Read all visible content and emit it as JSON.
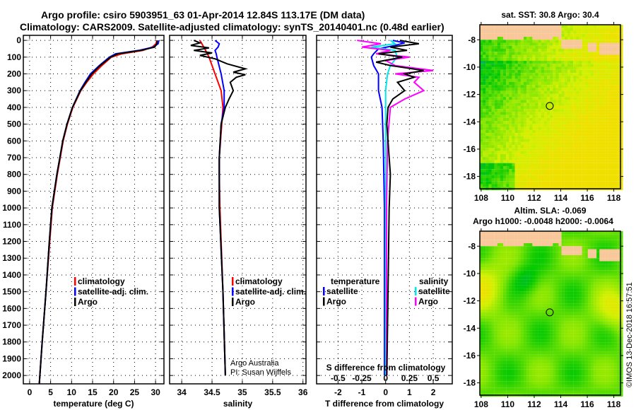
{
  "title": {
    "line1": "Argo profile: csiro 5903951_63 01-Apr-2014 12.84S 113.17E (DM data)",
    "line2": "Climatology: CARS2009. Satellite-adjusted climatology: synTS_20140401.nc (0.48d earlier)"
  },
  "watermark": "©IMOS 13-Dec-2018 16:57:51",
  "credit": {
    "line1": "Argo Australia",
    "line2": "PI: Susan Wijffels"
  },
  "colors": {
    "argo": "#000000",
    "climatology": "#ff0000",
    "satellite": "#0000ff",
    "sal_satellite": "#00e8e8",
    "sal_argo": "#ff00ff",
    "land": "#f8c89a"
  },
  "chart_data": [
    {
      "type": "line",
      "id": "temperature",
      "xlabel": "temperature (deg C)",
      "ylabel": "",
      "xlim": [
        -1.5,
        32
      ],
      "ylim": [
        2050,
        -30
      ],
      "xticks": [
        0,
        5,
        10,
        15,
        20,
        25,
        30
      ],
      "yticks": [
        0,
        100,
        200,
        300,
        400,
        500,
        600,
        700,
        800,
        900,
        1000,
        1100,
        1200,
        1300,
        1400,
        1500,
        1600,
        1700,
        1800,
        1900,
        2000
      ],
      "grid": true,
      "legend": [
        "climatology",
        "satellite-adj. clim.",
        "Argo"
      ],
      "series": [
        {
          "name": "climatology",
          "color": "#ff0000",
          "depth": [
            0,
            20,
            40,
            60,
            80,
            100,
            150,
            200,
            250,
            300,
            400,
            500,
            600,
            700,
            800,
            1000,
            1200,
            1500,
            1800,
            2050
          ],
          "values": [
            30.3,
            30.1,
            29.2,
            27.0,
            22.0,
            19.5,
            17.2,
            15.2,
            13.6,
            12.2,
            10.3,
            9.0,
            8.0,
            7.3,
            6.6,
            5.4,
            4.8,
            3.9,
            3.0,
            2.3
          ]
        },
        {
          "name": "satellite-adj. clim.",
          "color": "#0000ff",
          "depth": [
            0,
            20,
            40,
            60,
            80,
            100,
            150,
            200,
            250,
            300,
            400,
            500,
            600,
            700,
            800,
            1000,
            1200,
            1500,
            1800,
            2050
          ],
          "values": [
            30.8,
            30.6,
            29.5,
            26.0,
            20.5,
            19.0,
            16.6,
            14.5,
            13.2,
            12.0,
            10.2,
            8.9,
            7.9,
            7.2,
            6.5,
            5.3,
            4.7,
            3.9,
            3.0,
            2.3
          ]
        },
        {
          "name": "Argo",
          "color": "#000000",
          "depth": [
            0,
            20,
            40,
            60,
            80,
            100,
            150,
            200,
            250,
            300,
            400,
            500,
            600,
            700,
            800,
            1000,
            1200,
            1500,
            1800,
            2050
          ],
          "values": [
            30.4,
            30.3,
            29.8,
            26.5,
            21.0,
            19.3,
            16.8,
            14.8,
            13.4,
            12.1,
            10.2,
            8.9,
            7.9,
            7.2,
            6.5,
            5.3,
            4.7,
            3.9,
            3.0,
            2.3
          ]
        }
      ]
    },
    {
      "type": "line",
      "id": "salinity",
      "xlabel": "salinity",
      "xlim": [
        33.8,
        36.05
      ],
      "ylim": [
        2050,
        -30
      ],
      "xticks": [
        34,
        34.5,
        35,
        35.5,
        36
      ],
      "grid": true,
      "legend": [
        "climatology",
        "satellite-adj. clim.",
        "Argo"
      ],
      "series": [
        {
          "name": "climatology",
          "color": "#ff0000",
          "depth": [
            0,
            50,
            100,
            200,
            300,
            400,
            600,
            700,
            800,
            1000,
            1500,
            2000
          ],
          "values": [
            34.3,
            34.38,
            34.45,
            34.55,
            34.65,
            34.68,
            34.64,
            34.62,
            34.62,
            34.63,
            34.68,
            34.72
          ]
        },
        {
          "name": "satellite-adj. clim.",
          "color": "#0000ff",
          "depth": [
            0,
            20,
            40,
            60,
            80,
            100,
            200,
            300,
            400,
            500,
            700,
            1000,
            1500,
            2000
          ],
          "values": [
            34.55,
            34.62,
            34.6,
            34.55,
            34.57,
            34.58,
            34.65,
            34.7,
            34.7,
            34.65,
            34.62,
            34.62,
            34.68,
            34.72
          ]
        },
        {
          "name": "Argo",
          "color": "#000000",
          "depth": [
            0,
            15,
            30,
            45,
            60,
            75,
            90,
            110,
            140,
            170,
            190,
            205,
            220,
            250,
            300,
            350,
            400,
            500,
            700,
            1000,
            1500,
            2000
          ],
          "values": [
            34.2,
            34.3,
            34.15,
            34.45,
            34.2,
            34.5,
            34.3,
            34.55,
            34.75,
            35.05,
            34.85,
            35.05,
            34.9,
            34.8,
            34.85,
            34.78,
            34.72,
            34.65,
            34.62,
            34.62,
            34.68,
            34.72
          ]
        }
      ]
    },
    {
      "type": "line",
      "id": "difference",
      "xlabel": "T difference from climatology",
      "xlabel2": "S difference from climatology",
      "xlim": [
        -2.9,
        2.8
      ],
      "ylim": [
        2050,
        -30
      ],
      "xticks": [
        -2,
        -1,
        0,
        1,
        2
      ],
      "xticks_s": [
        -0.5,
        -0.25,
        0,
        0.25,
        0.5
      ],
      "xtick_labels_s": [
        "-0.5",
        "-0.25",
        "0",
        "0.25",
        "0.5"
      ],
      "grid": true,
      "legend_t": {
        "title": "temperature",
        "items": [
          "satellite",
          "Argo"
        ]
      },
      "legend_s": {
        "title": "salinity",
        "items": [
          "satellite",
          "Argo"
        ]
      },
      "series": [
        {
          "name": "T satellite",
          "unit": "T",
          "color": "#0000ff",
          "depth": [
            0,
            15,
            30,
            50,
            80,
            100,
            150,
            200,
            300,
            400,
            600,
            1000,
            1500,
            2000
          ],
          "values": [
            0.3,
            0.8,
            0.4,
            -0.3,
            -0.5,
            -0.6,
            -0.5,
            -0.3,
            -0.3,
            -0.15,
            -0.1,
            -0.05,
            -0.05,
            -0.05
          ]
        },
        {
          "name": "S satellite",
          "unit": "S",
          "color": "#00e8e8",
          "depth": [
            0,
            20,
            40,
            60,
            100,
            150,
            200,
            300,
            400,
            600,
            1000,
            2000
          ],
          "values": [
            0.05,
            0.1,
            -0.15,
            0.1,
            0.12,
            0.05,
            0.02,
            0.0,
            0.0,
            0.0,
            0.0,
            0.0
          ]
        },
        {
          "name": "S Argo",
          "unit": "S",
          "color": "#ff00ff",
          "depth": [
            0,
            20,
            40,
            60,
            80,
            100,
            120,
            150,
            180,
            200,
            220,
            250,
            300,
            350,
            400,
            600,
            1000,
            2000
          ],
          "values": [
            -0.3,
            -0.05,
            -0.25,
            0.05,
            -0.1,
            0.25,
            0.0,
            0.1,
            0.5,
            0.1,
            0.35,
            0.3,
            0.4,
            0.2,
            0.05,
            0.02,
            0.01,
            0.01
          ]
        },
        {
          "name": "T Argo",
          "unit": "T",
          "color": "#000000",
          "depth": [
            0,
            20,
            40,
            60,
            80,
            100,
            130,
            150,
            180,
            200,
            220,
            250,
            300,
            350,
            400,
            500,
            800,
            1000,
            1500,
            2000
          ],
          "values": [
            0.6,
            1.4,
            0.2,
            0.9,
            -0.3,
            0.7,
            -0.4,
            0.2,
            1.6,
            0.8,
            1.2,
            0.5,
            0.8,
            0.3,
            0.1,
            0.05,
            0.2,
            0.15,
            0.1,
            0.05
          ]
        }
      ]
    },
    {
      "type": "heatmap",
      "id": "sst-map",
      "title": "sat. SST: 30.8 Argo: 30.4",
      "xlim": [
        107.9,
        118.5
      ],
      "ylim": [
        -18.9,
        -6.9
      ],
      "xticks": [
        108,
        110,
        112,
        114,
        116,
        118
      ],
      "yticks": [
        -8,
        -10,
        -12,
        -14,
        -16,
        -18
      ],
      "marker": {
        "lon": 113.17,
        "lat": -12.84
      }
    },
    {
      "type": "heatmap",
      "id": "sla-map",
      "title": "Altim. SLA: -0.069",
      "subtitle": "Argo h1000: -0.0048 h2000: -0.0064",
      "xlim": [
        107.9,
        118.5
      ],
      "ylim": [
        -18.9,
        -6.9
      ],
      "xticks": [
        108,
        110,
        112,
        114,
        116,
        118
      ],
      "yticks": [
        -8,
        -10,
        -12,
        -14,
        -16,
        -18
      ],
      "marker": {
        "lon": 113.17,
        "lat": -12.84
      }
    }
  ]
}
